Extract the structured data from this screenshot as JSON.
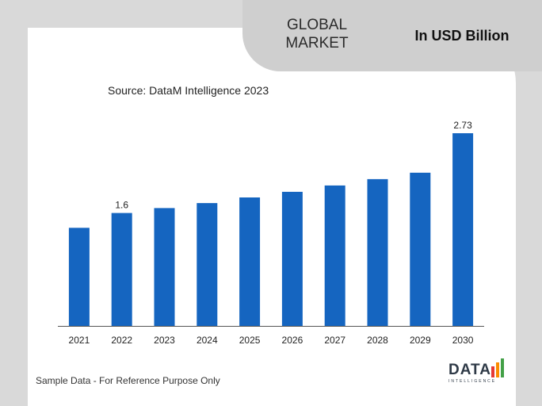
{
  "header": {
    "title_line1": "GLOBAL",
    "title_line2": "MARKET",
    "unit": "In USD Billion"
  },
  "source": "Source: DataM Intelligence  2023",
  "footer": {
    "note": "Sample Data - For Reference Purpose Only"
  },
  "logo": {
    "word": "DATA",
    "sub": "INTELLIGENCE",
    "bar_colors": [
      "#e53935",
      "#fb8c00",
      "#43a047"
    ]
  },
  "colors": {
    "bar": "#1565c0",
    "axis": "#555555"
  },
  "chart_data": {
    "type": "bar",
    "categories": [
      "2021",
      "2022",
      "2023",
      "2024",
      "2025",
      "2026",
      "2027",
      "2028",
      "2029",
      "2030"
    ],
    "values": [
      1.39,
      1.6,
      1.67,
      1.74,
      1.82,
      1.9,
      1.99,
      2.08,
      2.17,
      2.73
    ],
    "data_labels": {
      "2022": "1.6",
      "2030": "2.73"
    },
    "title": "",
    "xlabel": "",
    "ylabel": "",
    "ylim": [
      0,
      2.73
    ],
    "grid": false,
    "legend": "none"
  }
}
